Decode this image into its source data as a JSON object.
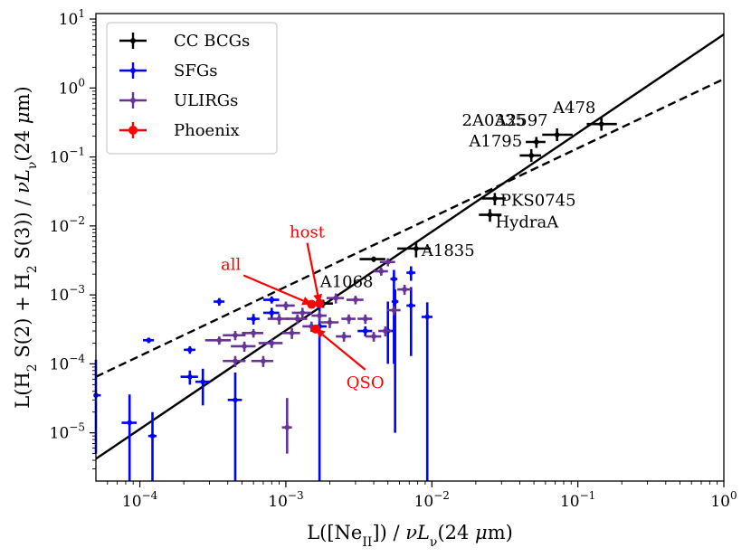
{
  "chart_data": {
    "type": "scatter",
    "xlabel_parts": [
      "L([Ne",
      "II",
      "]) / ",
      "νL",
      "ν",
      "(24 ",
      "μ",
      "m)"
    ],
    "ylabel_parts": [
      "L(H",
      "2",
      " S(2) + H",
      "2",
      " S(3)) / ",
      "νL",
      "ν",
      "(24 ",
      "μ",
      "m)"
    ],
    "xscale": "log",
    "yscale": "log",
    "xlim": [
      5e-05,
      1
    ],
    "ylim": [
      2e-06,
      12
    ],
    "x_ticks": [
      {
        "v": 0.0001,
        "e": "−4"
      },
      {
        "v": 0.001,
        "e": "−3"
      },
      {
        "v": 0.01,
        "e": "−2"
      },
      {
        "v": 0.1,
        "e": "−1"
      },
      {
        "v": 1,
        "e": "0"
      }
    ],
    "y_ticks": [
      {
        "v": 1e-05,
        "e": "−5"
      },
      {
        "v": 0.0001,
        "e": "−4"
      },
      {
        "v": 0.001,
        "e": "−3"
      },
      {
        "v": 0.01,
        "e": "−2"
      },
      {
        "v": 0.1,
        "e": "−1"
      },
      {
        "v": 1,
        "e": "0"
      },
      {
        "v": 10,
        "e": "1"
      }
    ],
    "tick_base": "10",
    "legend": {
      "position": "upper-left",
      "entries": [
        {
          "label": "CC BCGs",
          "color": "#000000"
        },
        {
          "label": "SFGs",
          "color": "#0000ff"
        },
        {
          "label": "ULIRGs",
          "color": "#663399"
        },
        {
          "label": "Phoenix",
          "color": "#ff0000"
        }
      ]
    },
    "fit_lines": [
      {
        "style": "solid",
        "color": "#000000",
        "points": [
          [
            5e-05,
            4.2e-06
          ],
          [
            1,
            6
          ]
        ]
      },
      {
        "style": "dashed",
        "color": "#000000",
        "points": [
          [
            5e-05,
            6.5e-05
          ],
          [
            1,
            1.35
          ]
        ]
      }
    ],
    "series": [
      {
        "name": "CC BCGs",
        "color": "#000000",
        "points": [
          {
            "x": 0.145,
            "y": 0.3,
            "xerr": [
              0.03,
              0.04
            ],
            "yerr": [
              0.06,
              0.07
            ],
            "label": "A478"
          },
          {
            "x": 0.072,
            "y": 0.21,
            "xerr": [
              0.015,
              0.02
            ],
            "yerr": [
              0.04,
              0.05
            ],
            "label": "A2597"
          },
          {
            "x": 0.052,
            "y": 0.165,
            "xerr": [
              0.008,
              0.008
            ],
            "yerr": [
              0.03,
              0.03
            ],
            "label": "2A0335"
          },
          {
            "x": 0.048,
            "y": 0.105,
            "xerr": [
              0.008,
              0.008
            ],
            "yerr": [
              0.02,
              0.025
            ],
            "label": "A1795"
          },
          {
            "x": 0.027,
            "y": 0.025,
            "xerr": [
              0.005,
              0.005
            ],
            "yerr": [
              0.005,
              0.005
            ],
            "label": "PKS0745"
          },
          {
            "x": 0.025,
            "y": 0.0145,
            "xerr": [
              0.004,
              0.005
            ],
            "yerr": [
              0.003,
              0.003
            ],
            "label": "HydraA"
          },
          {
            "x": 0.0078,
            "y": 0.0047,
            "xerr": [
              0.002,
              0.002
            ],
            "yerr": [
              0.0012,
              0.0012
            ],
            "label": "A1835"
          },
          {
            "x": 0.004,
            "y": 0.0033,
            "xerr": [
              0.0008,
              0.0008
            ],
            "yerr": [
              0.0003,
              0.0003
            ],
            "label": ""
          },
          {
            "x": 0.0018,
            "y": 0.00075,
            "xerr": [
              0.0003,
              0.0003
            ],
            "yerr": [
              0.0001,
              0.0001
            ],
            "label": "A1068"
          }
        ]
      },
      {
        "name": "SFGs",
        "color": "#0000ff",
        "points": [
          {
            "x": 5e-05,
            "y": 3.5e-05,
            "xerr": [
              0,
              4e-06
            ],
            "yerr": [
              3e-05,
              8e-05
            ]
          },
          {
            "x": 8.5e-05,
            "y": 1.4e-05,
            "xerr": [
              1e-05,
              1e-05
            ],
            "yerr": [
              1.2e-05,
              2.2e-05
            ]
          },
          {
            "x": 0.000122,
            "y": 9e-06,
            "xerr": [
              8e-06,
              8e-06
            ],
            "yerr": [
              7e-06,
              1.1e-05
            ]
          },
          {
            "x": 0.000115,
            "y": 0.00022,
            "xerr": [
              1e-05,
              1e-05
            ],
            "yerr": [
              2e-05,
              2e-05
            ]
          },
          {
            "x": 0.00022,
            "y": 6.5e-05,
            "xerr": [
              3e-05,
              3e-05
            ],
            "yerr": [
              1.5e-05,
              1.5e-05
            ]
          },
          {
            "x": 0.00022,
            "y": 0.00016,
            "xerr": [
              2e-05,
              2e-05
            ],
            "yerr": [
              2e-05,
              2e-05
            ]
          },
          {
            "x": 0.00027,
            "y": 5.5e-05,
            "xerr": [
              3e-05,
              3e-05
            ],
            "yerr": [
              3e-05,
              3e-05
            ]
          },
          {
            "x": 0.00035,
            "y": 0.0008,
            "xerr": [
              3e-05,
              3e-05
            ],
            "yerr": [
              0.0001,
              0.0001
            ]
          },
          {
            "x": 0.00045,
            "y": 3e-05,
            "xerr": [
              5e-05,
              5e-05
            ],
            "yerr": [
              2.8e-05,
              4.5e-05
            ]
          },
          {
            "x": 0.0006,
            "y": 0.00045,
            "xerr": [
              6e-05,
              6e-05
            ],
            "yerr": [
              8e-05,
              8e-05
            ]
          },
          {
            "x": 0.0008,
            "y": 0.00085,
            "xerr": [
              0.0001,
              0.0001
            ],
            "yerr": [
              0.0001,
              0.0001
            ]
          },
          {
            "x": 0.0008,
            "y": 0.00055,
            "xerr": [
              0.0001,
              0.0001
            ],
            "yerr": [
              0.0001,
              0.0001
            ]
          },
          {
            "x": 0.0017,
            "y": 0.00035,
            "xerr": [
              0.0002,
              0.0002
            ],
            "yerr": [
              0.000348,
              0.0003
            ]
          },
          {
            "x": 0.0035,
            "y": 0.0003,
            "xerr": [
              0.0004,
              0.0004
            ],
            "yerr": [
              5e-05,
              5e-05
            ]
          },
          {
            "x": 0.005,
            "y": 0.0003,
            "xerr": [
              0.0004,
              0.0004
            ],
            "yerr": [
              0.0002,
              0.0005
            ]
          },
          {
            "x": 0.0055,
            "y": 0.0017,
            "xerr": [
              0.0003,
              0.0003
            ],
            "yerr": [
              0.0016,
              0.0006
            ]
          },
          {
            "x": 0.0056,
            "y": 0.0008,
            "xerr": [
              0.0003,
              0.0003
            ],
            "yerr": [
              0.00079,
              0.0004
            ]
          },
          {
            "x": 0.0072,
            "y": 0.0021,
            "xerr": [
              0.0005,
              0.0005
            ],
            "yerr": [
              0.0005,
              0.0005
            ]
          },
          {
            "x": 0.0072,
            "y": 0.0007,
            "xerr": [
              0.0005,
              0.0005
            ],
            "yerr": [
              0.00057,
              0.0006
            ]
          },
          {
            "x": 0.0093,
            "y": 0.00048,
            "xerr": [
              0.0008,
              0.0008
            ],
            "yerr": [
              0.000478,
              0.0003
            ]
          }
        ]
      },
      {
        "name": "ULIRGs",
        "color": "#663399",
        "points": [
          {
            "x": 0.00035,
            "y": 0.00022,
            "xerr": [
              7e-05,
              7e-05
            ],
            "yerr": [
              3e-05,
              3e-05
            ]
          },
          {
            "x": 0.00045,
            "y": 0.00026,
            "xerr": [
              8e-05,
              8e-05
            ],
            "yerr": [
              4e-05,
              4e-05
            ]
          },
          {
            "x": 0.00045,
            "y": 0.00011,
            "xerr": [
              8e-05,
              8e-05
            ],
            "yerr": [
              2e-05,
              2e-05
            ]
          },
          {
            "x": 0.00052,
            "y": 0.00018,
            "xerr": [
              0.0001,
              0.0001
            ],
            "yerr": [
              3e-05,
              3e-05
            ]
          },
          {
            "x": 0.0006,
            "y": 0.00028,
            "xerr": [
              0.0001,
              0.0001
            ],
            "yerr": [
              4e-05,
              4e-05
            ]
          },
          {
            "x": 0.0007,
            "y": 0.00011,
            "xerr": [
              0.00012,
              0.00012
            ],
            "yerr": [
              2e-05,
              2e-05
            ]
          },
          {
            "x": 0.0008,
            "y": 0.0002,
            "xerr": [
              0.00015,
              0.00015
            ],
            "yerr": [
              3e-05,
              3e-05
            ]
          },
          {
            "x": 0.0009,
            "y": 0.00045,
            "xerr": [
              0.00015,
              0.00015
            ],
            "yerr": [
              8e-05,
              8e-05
            ]
          },
          {
            "x": 0.001,
            "y": 0.0007,
            "xerr": [
              0.00015,
              0.00015
            ],
            "yerr": [
              0.0001,
              0.0001
            ]
          },
          {
            "x": 0.0011,
            "y": 0.00028,
            "xerr": [
              0.00015,
              0.00015
            ],
            "yerr": [
              5e-05,
              5e-05
            ]
          },
          {
            "x": 0.00102,
            "y": 1.2e-05,
            "xerr": [
              8e-05,
              8e-05
            ],
            "yerr": [
              7e-06,
              2e-05
            ]
          },
          {
            "x": 0.0012,
            "y": 0.00045,
            "xerr": [
              0.0002,
              0.0002
            ],
            "yerr": [
              7e-05,
              7e-05
            ]
          },
          {
            "x": 0.0013,
            "y": 0.00055,
            "xerr": [
              0.0002,
              0.0002
            ],
            "yerr": [
              0.0001,
              0.0001
            ]
          },
          {
            "x": 0.0015,
            "y": 0.00035,
            "xerr": [
              0.0002,
              0.0002
            ],
            "yerr": [
              6e-05,
              6e-05
            ]
          },
          {
            "x": 0.0017,
            "y": 0.0005,
            "xerr": [
              0.0002,
              0.0002
            ],
            "yerr": [
              8e-05,
              8e-05
            ]
          },
          {
            "x": 0.002,
            "y": 0.0004,
            "xerr": [
              0.0003,
              0.0003
            ],
            "yerr": [
              7e-05,
              7e-05
            ]
          },
          {
            "x": 0.0022,
            "y": 0.0009,
            "xerr": [
              0.0003,
              0.0003
            ],
            "yerr": [
              0.00015,
              0.00015
            ]
          },
          {
            "x": 0.0025,
            "y": 0.00025,
            "xerr": [
              0.0003,
              0.0003
            ],
            "yerr": [
              4e-05,
              4e-05
            ]
          },
          {
            "x": 0.0027,
            "y": 0.00045,
            "xerr": [
              0.0003,
              0.0003
            ],
            "yerr": [
              7e-05,
              7e-05
            ]
          },
          {
            "x": 0.003,
            "y": 0.00085,
            "xerr": [
              0.0004,
              0.0004
            ],
            "yerr": [
              0.00012,
              0.00012
            ]
          },
          {
            "x": 0.0035,
            "y": 0.00045,
            "xerr": [
              0.0004,
              0.0004
            ],
            "yerr": [
              7e-05,
              7e-05
            ]
          },
          {
            "x": 0.004,
            "y": 0.00025,
            "xerr": [
              0.0005,
              0.0005
            ],
            "yerr": [
              4e-05,
              4e-05
            ]
          },
          {
            "x": 0.0045,
            "y": 0.0022,
            "xerr": [
              0.0005,
              0.0005
            ],
            "yerr": [
              0.0003,
              0.0003
            ]
          },
          {
            "x": 0.0048,
            "y": 0.0003,
            "xerr": [
              0.0005,
              0.0005
            ],
            "yerr": [
              5e-05,
              5e-05
            ]
          },
          {
            "x": 0.005,
            "y": 0.003,
            "xerr": [
              0.0006,
              0.0006
            ],
            "yerr": [
              0.0004,
              0.0004
            ]
          },
          {
            "x": 0.0055,
            "y": 0.0006,
            "xerr": [
              0.0006,
              0.0006
            ],
            "yerr": [
              9e-05,
              9e-05
            ]
          },
          {
            "x": 0.0065,
            "y": 0.0012,
            "xerr": [
              0.0007,
              0.0007
            ],
            "yerr": [
              0.0002,
              0.0002
            ]
          }
        ]
      },
      {
        "name": "Phoenix",
        "color": "#ff0000",
        "points": [
          {
            "x": 0.0015,
            "y": 0.00073,
            "xerr": [
              0,
              0
            ],
            "yerr": [
              0,
              0
            ]
          },
          {
            "x": 0.0017,
            "y": 0.00075,
            "xerr": [
              0,
              0
            ],
            "yerr": [
              0,
              0
            ]
          },
          {
            "x": 0.0016,
            "y": 0.00032,
            "xerr": [
              0,
              0
            ],
            "yerr": [
              0,
              0
            ]
          }
        ]
      }
    ],
    "annotations": [
      {
        "text": "all",
        "color": "#ff0000",
        "text_at": [
          0.00042,
          0.0023
        ],
        "arrow_to": [
          0.0015,
          0.00073
        ]
      },
      {
        "text": "host",
        "color": "#ff0000",
        "text_at": [
          0.0014,
          0.0068
        ],
        "arrow_to": [
          0.0017,
          0.00075
        ]
      },
      {
        "text": "QSO",
        "color": "#ff0000",
        "text_at": [
          0.0035,
          4.5e-05
        ],
        "arrow_to": [
          0.0016,
          0.00032
        ]
      }
    ]
  }
}
